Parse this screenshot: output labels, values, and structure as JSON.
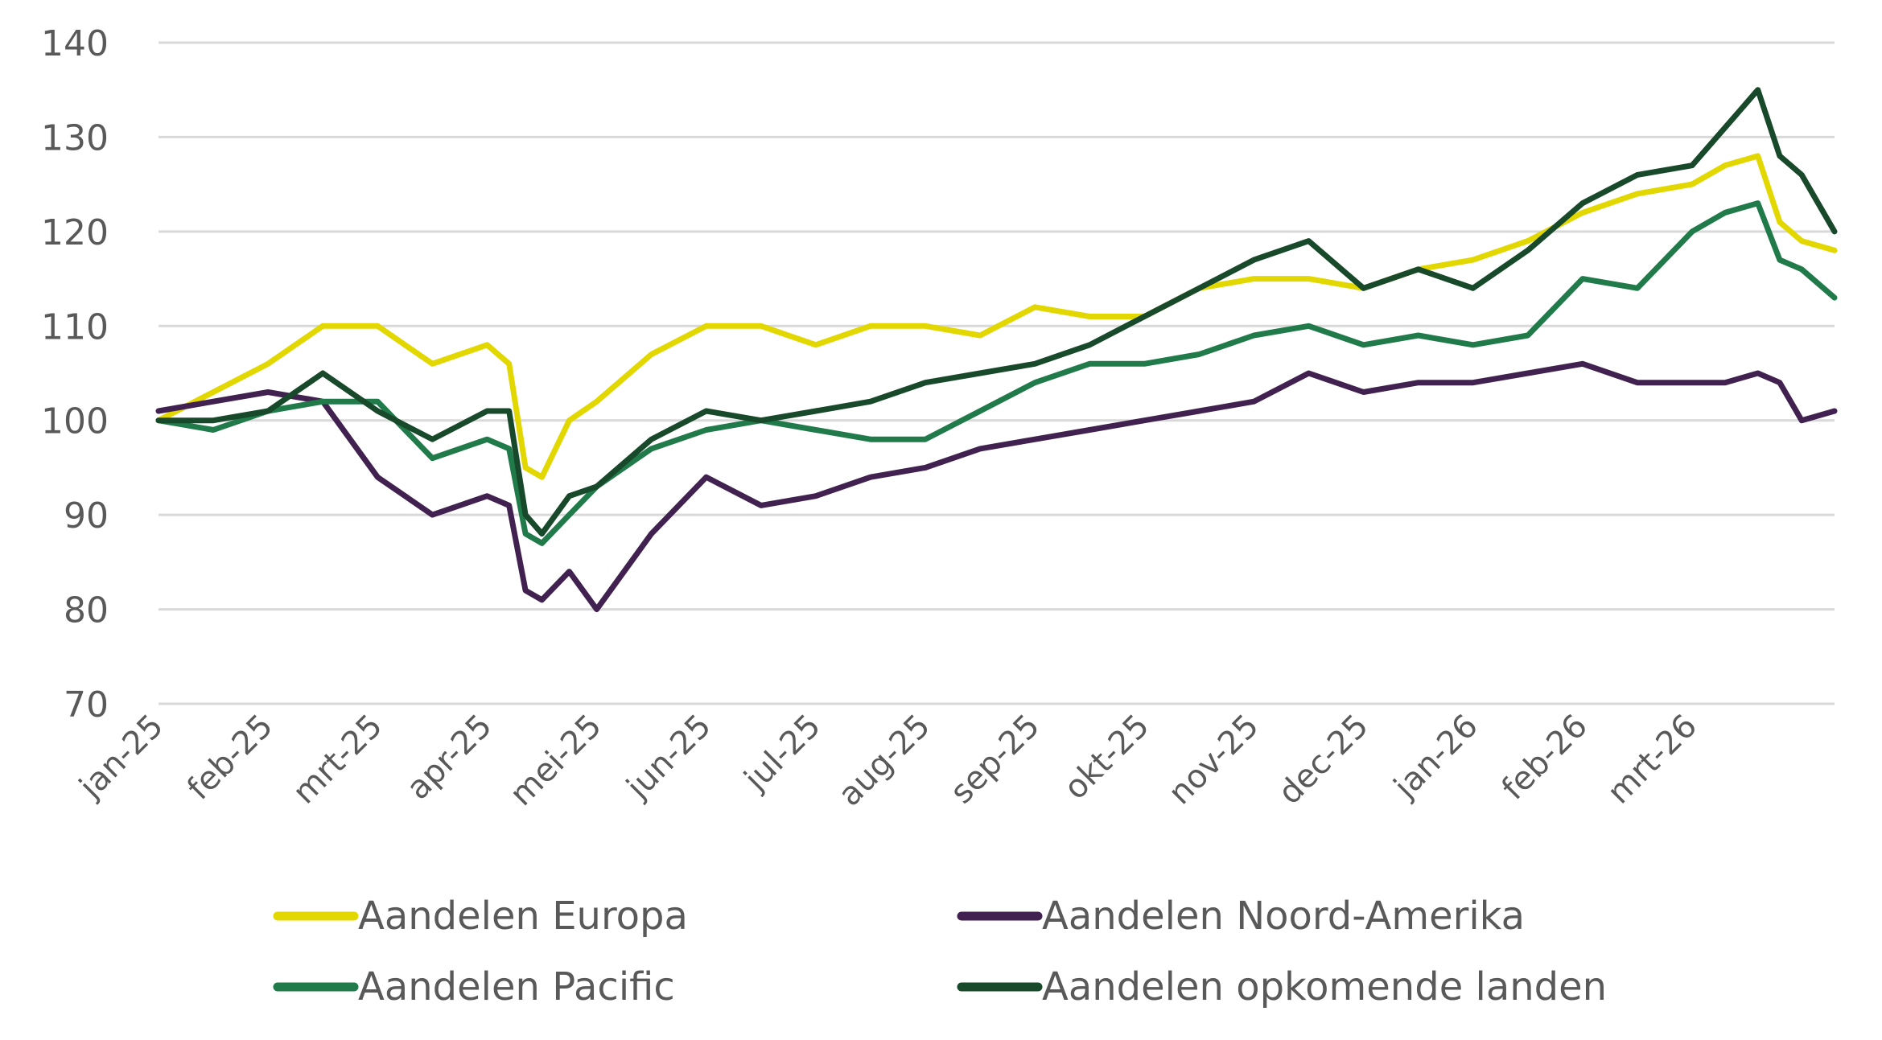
{
  "chart_data": {
    "type": "line",
    "title": "",
    "xlabel": "",
    "ylabel": "",
    "ylim": [
      70,
      140
    ],
    "yticks": [
      70,
      80,
      90,
      100,
      110,
      120,
      130,
      140
    ],
    "grid": true,
    "legend_position": "bottom",
    "x_tick_labels": [
      "jan-25",
      "feb-25",
      "mrt-25",
      "apr-25",
      "mei-25",
      "jun-25",
      "jul-25",
      "aug-25",
      "sep-25",
      "okt-25",
      "nov-25",
      "dec-25",
      "jan-26",
      "feb-26",
      "mrt-26"
    ],
    "x": [
      0,
      0.5,
      1,
      1.5,
      2,
      2.5,
      3,
      3.2,
      3.35,
      3.5,
      3.75,
      4,
      4.5,
      5,
      5.5,
      6,
      6.5,
      7,
      7.5,
      8,
      8.5,
      9,
      9.5,
      10,
      10.5,
      11,
      11.5,
      12,
      12.5,
      13,
      13.5,
      14,
      14.3,
      14.6,
      14.8,
      15,
      15.3
    ],
    "series": [
      {
        "name": "Aandelen Europa",
        "color": "#E2D800",
        "values": [
          100,
          103,
          106,
          110,
          110,
          106,
          108,
          106,
          95,
          94,
          100,
          102,
          107,
          110,
          110,
          108,
          110,
          110,
          109,
          112,
          111,
          111,
          114,
          115,
          115,
          114,
          116,
          117,
          119,
          122,
          124,
          125,
          127,
          128,
          121,
          119,
          118
        ]
      },
      {
        "name": "Aandelen Noord-Amerika",
        "color": "#41214F",
        "values": [
          101,
          102,
          103,
          102,
          94,
          90,
          92,
          91,
          82,
          81,
          84,
          80,
          88,
          94,
          91,
          92,
          94,
          95,
          97,
          98,
          99,
          100,
          101,
          102,
          105,
          103,
          104,
          104,
          105,
          106,
          104,
          104,
          104,
          105,
          104,
          100,
          101
        ]
      },
      {
        "name": "Aandelen Pacific",
        "color": "#217A4A",
        "values": [
          100,
          99,
          101,
          102,
          102,
          96,
          98,
          97,
          88,
          87,
          90,
          93,
          97,
          99,
          100,
          99,
          98,
          98,
          101,
          104,
          106,
          106,
          107,
          109,
          110,
          108,
          109,
          108,
          109,
          115,
          114,
          120,
          122,
          123,
          117,
          116,
          113
        ]
      },
      {
        "name": "Aandelen opkomende landen",
        "color": "#17492A",
        "values": [
          100,
          100,
          101,
          105,
          101,
          98,
          101,
          101,
          90,
          88,
          92,
          93,
          98,
          101,
          100,
          101,
          102,
          104,
          105,
          106,
          108,
          111,
          114,
          117,
          119,
          114,
          116,
          114,
          118,
          123,
          126,
          127,
          131,
          135,
          128,
          126,
          120
        ]
      }
    ]
  },
  "legend": {
    "items": [
      {
        "label": "Aandelen Europa",
        "color": "#E2D800"
      },
      {
        "label": "Aandelen Noord-Amerika",
        "color": "#41214F"
      },
      {
        "label": "Aandelen Pacific",
        "color": "#217A4A"
      },
      {
        "label": "Aandelen opkomende landen",
        "color": "#17492A"
      }
    ]
  },
  "style": {
    "gridline_color": "#D9D9D9",
    "axis_text_color": "#595959"
  }
}
